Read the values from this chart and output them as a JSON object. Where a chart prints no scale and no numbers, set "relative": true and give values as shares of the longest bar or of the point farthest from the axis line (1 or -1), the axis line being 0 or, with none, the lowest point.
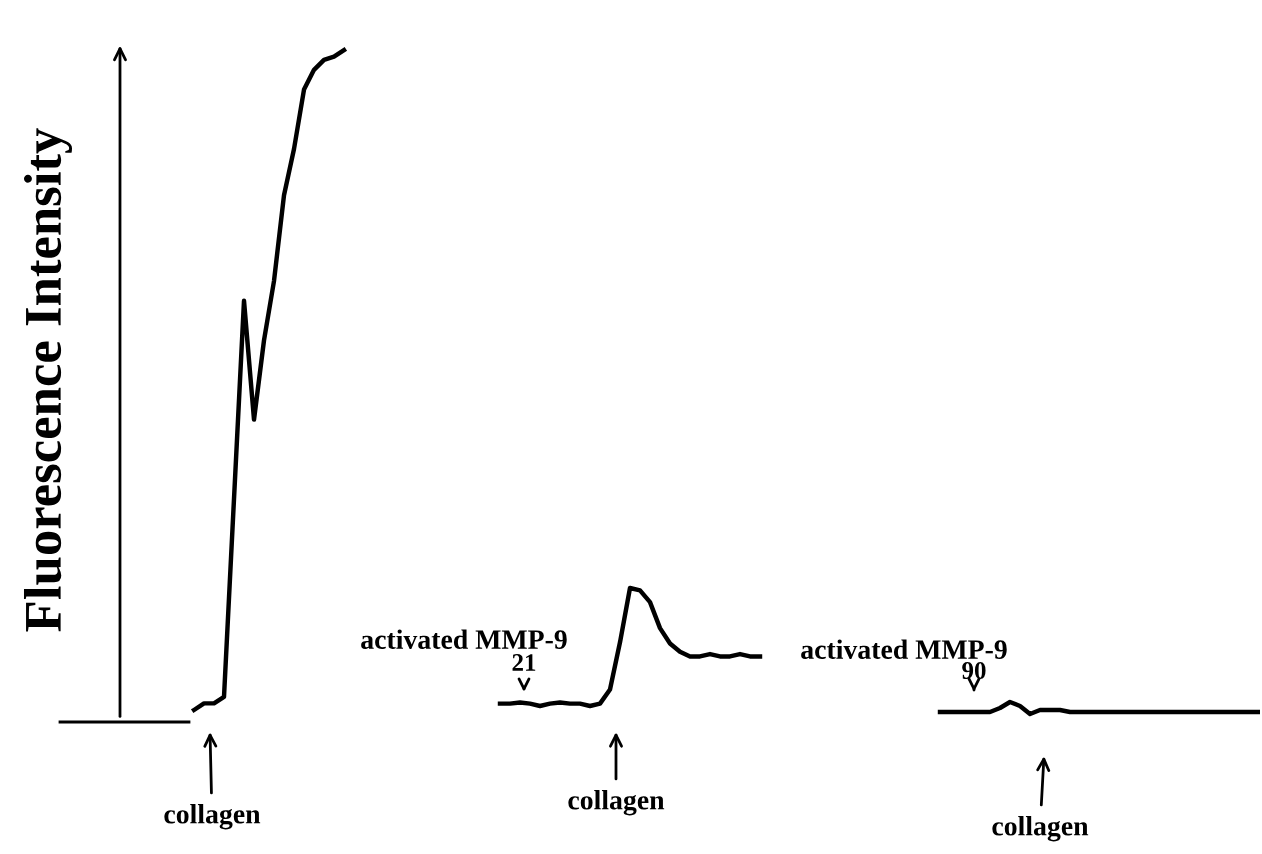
{
  "chart_data": [
    {
      "type": "line",
      "relative": true,
      "ylabel": "Fluorescence Intensity",
      "categories": [
        null,
        null,
        null,
        null,
        null,
        null,
        null,
        null,
        null,
        null,
        null,
        null,
        null,
        null,
        null,
        null
      ],
      "series": [
        {
          "color": "#000000",
          "values": [
            0,
            0.01,
            0.01,
            0.02,
            0.32,
            0.62,
            0.44,
            0.56,
            0.65,
            0.78,
            0.85,
            0.94,
            0.97,
            0.985,
            0.99,
            1.0
          ]
        }
      ],
      "annotations": [
        "collagen"
      ]
    },
    {
      "type": "line",
      "relative": true,
      "categories": [
        null,
        null,
        null,
        null,
        null,
        null,
        null,
        null,
        null,
        null,
        null,
        null,
        null,
        null,
        null,
        null,
        null,
        null,
        null,
        null,
        null,
        null,
        null,
        null,
        null,
        null,
        null
      ],
      "series": [
        {
          "color": "#000000",
          "values": [
            0.02,
            0.02,
            0.03,
            0.02,
            0,
            0.02,
            0.03,
            0.02,
            0.02,
            0,
            0.02,
            0.14,
            0.54,
            1,
            0.98,
            0.88,
            0.66,
            0.53,
            0.46,
            0.42,
            0.42,
            0.44,
            0.42,
            0.42,
            0.44,
            0.42,
            0.42
          ]
        }
      ],
      "annotations": [
        "activated MMP-9",
        "21",
        "collagen"
      ]
    },
    {
      "type": "line",
      "relative": true,
      "categories": [
        null,
        null,
        null,
        null,
        null,
        null,
        null,
        null,
        null,
        null,
        null,
        null,
        null,
        null,
        null,
        null,
        null,
        null,
        null,
        null,
        null,
        null,
        null,
        null,
        null,
        null,
        null,
        null,
        null,
        null,
        null,
        null,
        null
      ],
      "series": [
        {
          "color": "#000000",
          "values": [
            0.17,
            0.17,
            0.17,
            0.17,
            0.17,
            0.17,
            0.5,
            1,
            0.67,
            0,
            0.33,
            0.33,
            0.33,
            0.17,
            0.17,
            0.17,
            0.17,
            0.17,
            0.17,
            0.17,
            0.17,
            0.17,
            0.17,
            0.17,
            0.17,
            0.17,
            0.17,
            0.17,
            0.17,
            0.17,
            0.17,
            0.17,
            0.17
          ]
        }
      ],
      "annotations": [
        "activated MMP-9",
        "90",
        "collagen"
      ]
    }
  ]
}
